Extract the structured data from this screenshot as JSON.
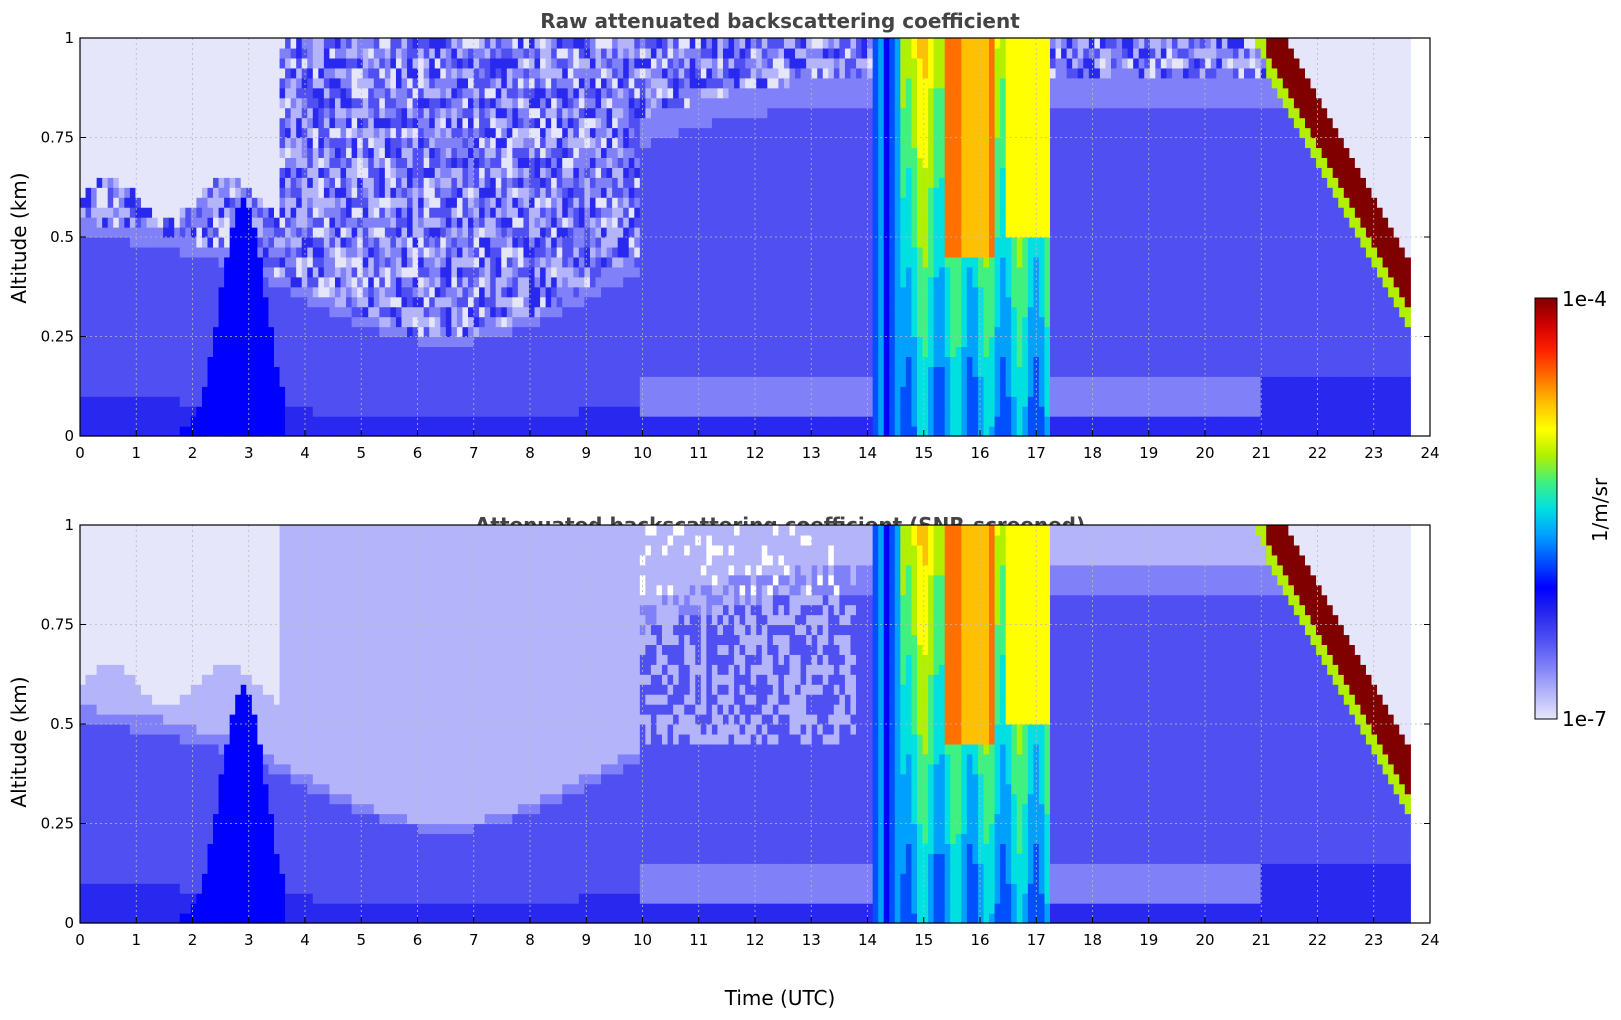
{
  "chart_data": [
    {
      "type": "heatmap",
      "title": "Raw attenuated backscattering coefficient",
      "xlabel": "",
      "ylabel": "Altitude (km)",
      "xlim": [
        0,
        24
      ],
      "ylim": [
        0,
        1
      ],
      "xticks": [
        "0",
        "1",
        "2",
        "3",
        "4",
        "5",
        "6",
        "7",
        "8",
        "9",
        "10",
        "11",
        "12",
        "13",
        "14",
        "15",
        "16",
        "17",
        "18",
        "19",
        "20",
        "21",
        "22",
        "23",
        "24"
      ],
      "yticks": [
        "0",
        "0.25",
        "0.5",
        "0.75",
        "1"
      ],
      "grid": true,
      "data_end_time": 23.65,
      "features": [
        {
          "time": [
            14.1,
            14.6
          ],
          "altitude": [
            0,
            1
          ],
          "log10_value": -5.8
        },
        {
          "time": [
            14.6,
            17.25
          ],
          "altitude": [
            0,
            1
          ],
          "log10_value": -5.3
        },
        {
          "time": [
            15.4,
            16.3
          ],
          "altitude": [
            0.45,
            1
          ],
          "log10_value": -4.6
        },
        {
          "time": [
            20.3,
            23.6
          ],
          "altitude": [
            0.3,
            1
          ],
          "log10_value": -4.1
        }
      ]
    },
    {
      "type": "heatmap",
      "title": "Attenuated backscattering coefficient (SNR-screened)",
      "xlabel": "Time (UTC)",
      "ylabel": "Altitude (km)",
      "xlim": [
        0,
        24
      ],
      "ylim": [
        0,
        1
      ],
      "xticks": [
        "0",
        "1",
        "2",
        "3",
        "4",
        "5",
        "6",
        "7",
        "8",
        "9",
        "10",
        "11",
        "12",
        "13",
        "14",
        "15",
        "16",
        "17",
        "18",
        "19",
        "20",
        "21",
        "22",
        "23",
        "24"
      ],
      "yticks": [
        "0",
        "0.25",
        "0.5",
        "0.75",
        "1"
      ],
      "grid": true,
      "data_end_time": 23.65,
      "features": [
        {
          "time": [
            14.1,
            14.6
          ],
          "altitude": [
            0,
            1
          ],
          "log10_value": -5.8
        },
        {
          "time": [
            14.6,
            17.25
          ],
          "altitude": [
            0,
            1
          ],
          "log10_value": -5.3
        },
        {
          "time": [
            15.4,
            16.3
          ],
          "altitude": [
            0.45,
            1
          ],
          "log10_value": -4.6
        },
        {
          "time": [
            20.3,
            23.6
          ],
          "altitude": [
            0.3,
            1
          ],
          "log10_value": -4.1
        }
      ]
    }
  ],
  "colorbar": {
    "label": "1/m/sr",
    "min_label": "1e-7",
    "max_label": "1e-4",
    "min": -7,
    "max": -4,
    "colors": [
      "#e6e6fa",
      "#b4b4fa",
      "#8080f8",
      "#5050f2",
      "#2828ee",
      "#0000ff",
      "#0050ff",
      "#00a0ff",
      "#00e0e0",
      "#40f080",
      "#b0f000",
      "#ffff00",
      "#ffc000",
      "#ff7000",
      "#ff2000",
      "#d00000",
      "#800000"
    ]
  }
}
